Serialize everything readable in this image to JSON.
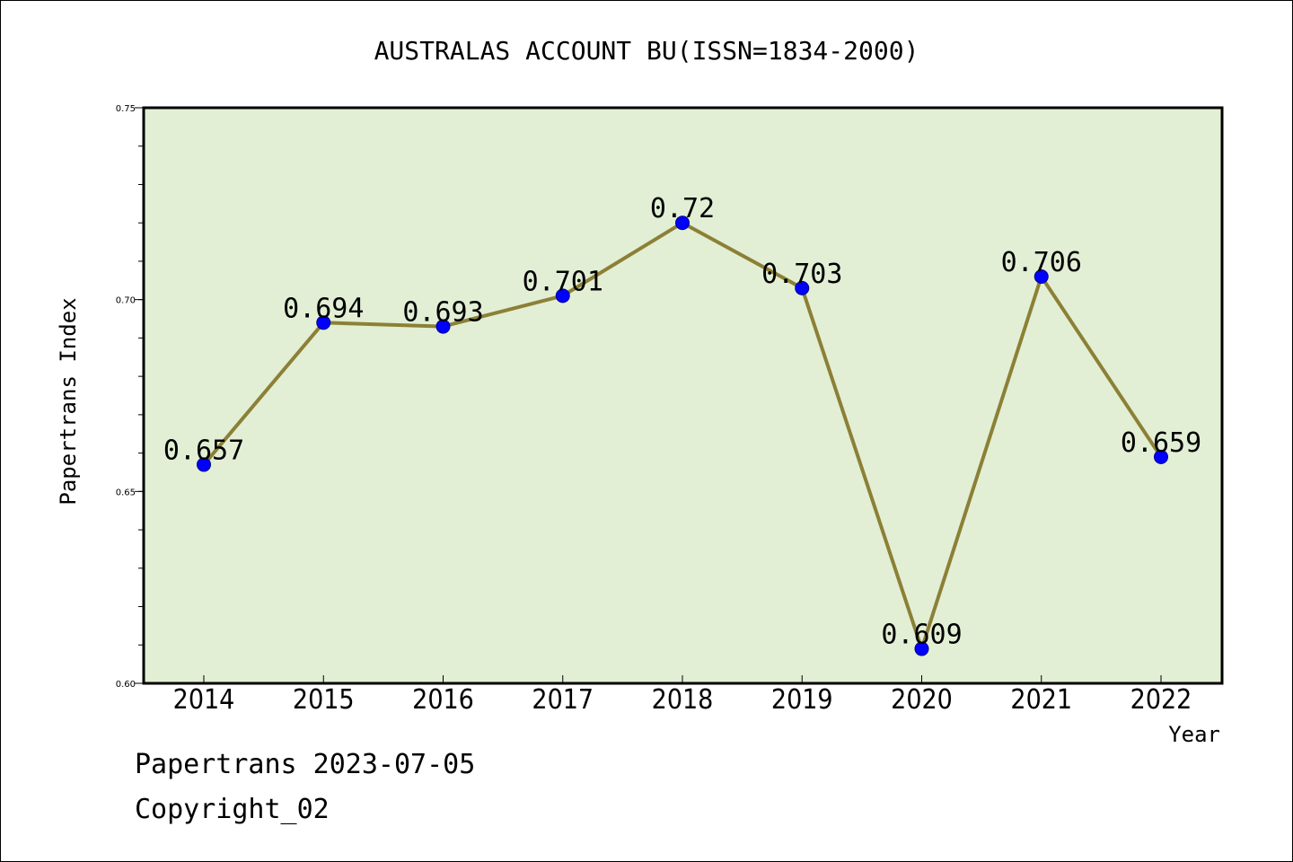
{
  "chart_data": {
    "type": "line",
    "title": "AUSTRALAS ACCOUNT BU(ISSN=1834-2000)",
    "xlabel": "Year",
    "ylabel": "Papertrans Index",
    "categories": [
      "2014",
      "2015",
      "2016",
      "2017",
      "2018",
      "2019",
      "2020",
      "2021",
      "2022"
    ],
    "values": [
      0.657,
      0.694,
      0.693,
      0.701,
      0.72,
      0.703,
      0.609,
      0.706,
      0.659
    ],
    "data_labels": [
      "0.657",
      "0.694",
      "0.693",
      "0.701",
      "0.72",
      "0.703",
      "0.609",
      "0.706",
      "0.659"
    ],
    "ylim": [
      0.6,
      0.75
    ],
    "yticks": [
      0.6,
      0.65,
      0.7,
      0.75
    ],
    "ytick_labels": [
      "0.60",
      "0.65",
      "0.70",
      "0.75"
    ],
    "grid": false,
    "colors": {
      "plot_background": "#e2efd5",
      "line": "#8c8036",
      "marker": "#0000ff"
    }
  },
  "footer": {
    "line1": "Papertrans 2023-07-05",
    "line2": "Copyright_02"
  }
}
